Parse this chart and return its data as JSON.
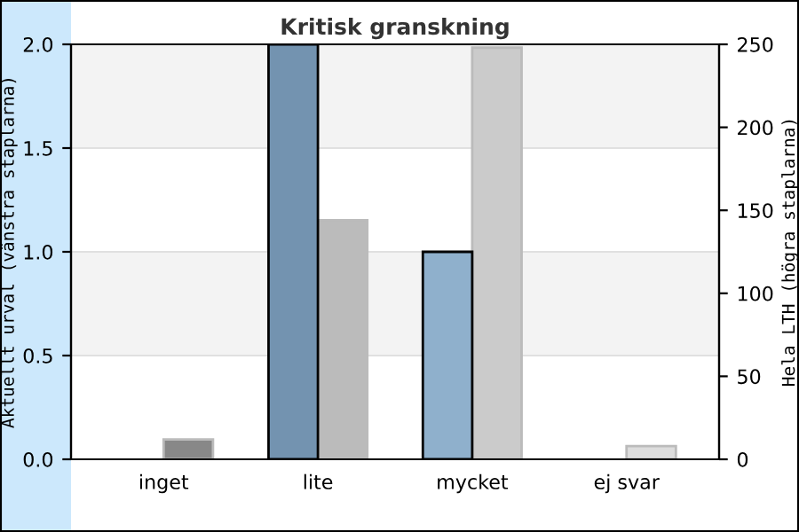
{
  "chart_data": {
    "type": "bar",
    "title": "Kritisk granskning",
    "ylabel": "Aktuellt urval (vänstra staplarna)",
    "y2label": "Hela LTH (högra staplarna)",
    "categories": [
      "inget",
      "lite",
      "mycket",
      "ej svar"
    ],
    "series": [
      {
        "colors": [
          "#7393b0",
          "#7393b0",
          "#8fb0cc",
          "#8fb0cc"
        ],
        "values": [
          0,
          2,
          1,
          0
        ]
      },
      {
        "axis": "y2",
        "colors": [
          "#888888",
          "#bbbbbb",
          "#cbcbcb",
          "#dddddd"
        ],
        "values": [
          12,
          144,
          248,
          8
        ]
      }
    ],
    "ylim": [
      0,
      2
    ],
    "yticks": [
      {
        "value": 0,
        "label": "0.0"
      },
      {
        "value": 0.5,
        "label": "0.5"
      },
      {
        "value": 1,
        "label": "1.0"
      },
      {
        "value": 1.5,
        "label": "1.5"
      },
      {
        "value": 2,
        "label": "2.0"
      }
    ],
    "y2lim": [
      0,
      250
    ],
    "y2ticks": [
      0,
      50,
      100,
      150,
      200,
      250
    ],
    "grid": "y"
  }
}
